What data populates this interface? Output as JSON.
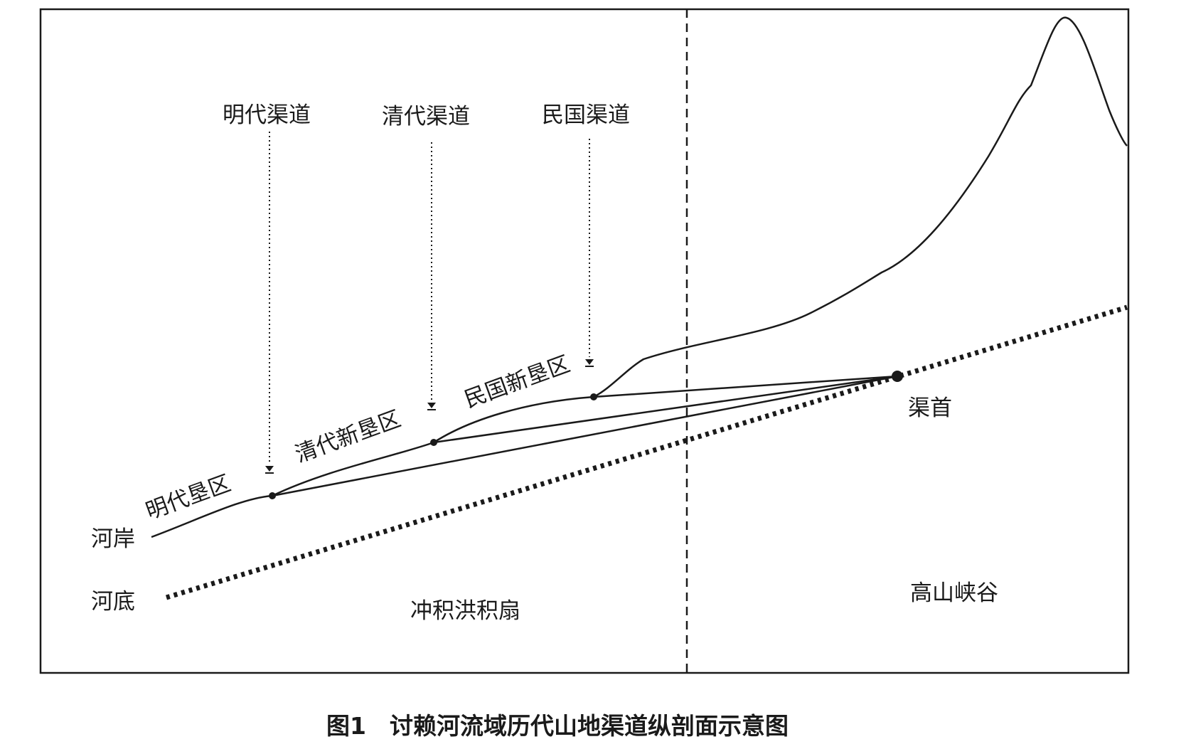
{
  "figure": {
    "caption": "图1　讨赖河流域历代山地渠道纵剖面示意图",
    "channels": {
      "ming": "明代渠道",
      "qing": "清代渠道",
      "minguo": "民国渠道"
    },
    "reclamation_zones": {
      "ming": "明代垦区",
      "qing": "清代新垦区",
      "minguo": "民国新垦区"
    },
    "river_bank": "河岸",
    "river_bed": "河底",
    "canal_head": "渠首",
    "alluvial_fan": "冲积洪积扇",
    "high_mountain_gorge": "高山峡谷"
  },
  "colors": {
    "ink": "#1a1a1a",
    "background": "#ffffff"
  }
}
